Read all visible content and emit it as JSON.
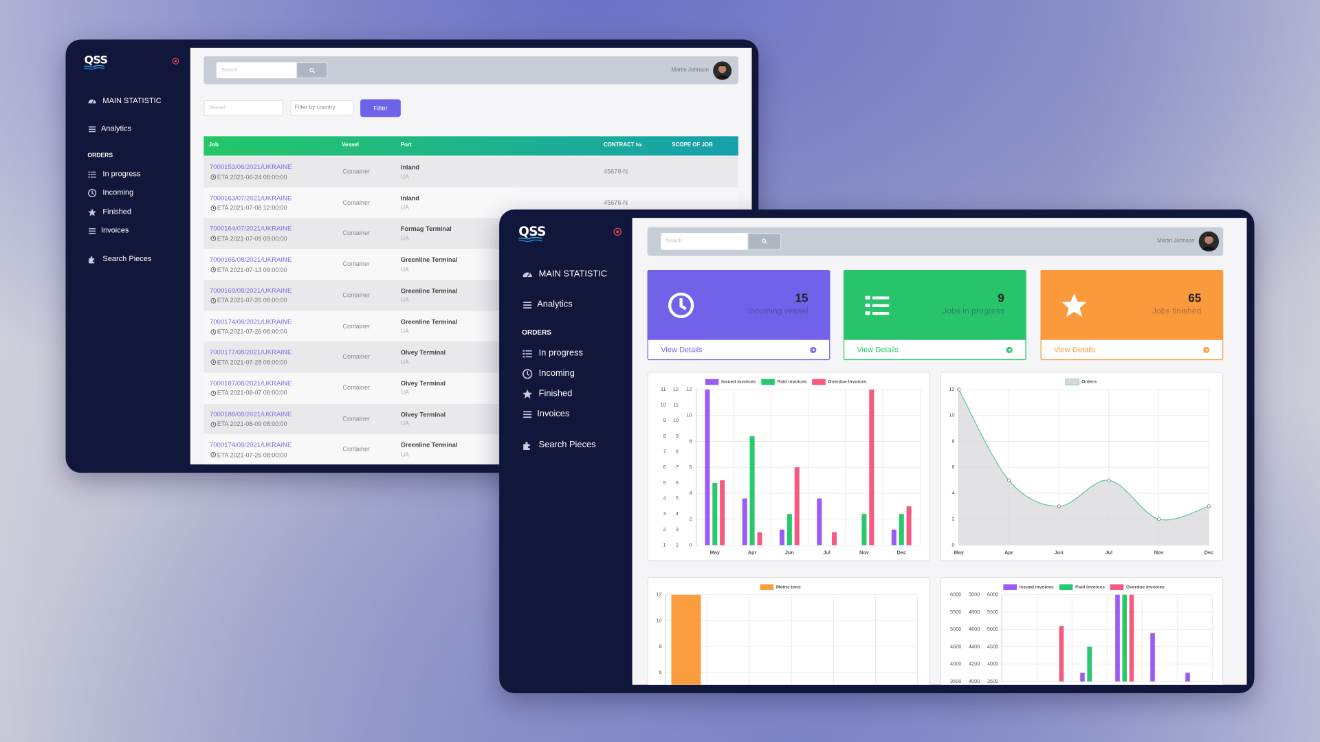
{
  "logo": "QSS",
  "sidebar": [
    "MAIN STATISTIC",
    "Analytics",
    "ORDERS",
    "In progress",
    "Incoming",
    "Finished",
    "Invoices",
    "Search Pieces"
  ],
  "topbar": {
    "search": "Search",
    "user": "Martin Johnson"
  },
  "filters": {
    "vessel": "Vessel",
    "country": "Filter by country",
    "button": "Filter"
  },
  "table": {
    "headers": [
      "Job",
      "Vessel",
      "Port",
      "CONTRACT №",
      "SCOPE OF JOB"
    ],
    "rows": [
      {
        "job": "7000153/06/2021/UKRAINE",
        "eta": "ETA 2021-06-24 08:00:00",
        "vessel": "Container",
        "port": "Inland",
        "country": "UA",
        "contract": "45678-N"
      },
      {
        "job": "7000163/07/2021/UKRAINE",
        "eta": "ETA 2021-07-08 12:00:00",
        "vessel": "Container",
        "port": "Inland",
        "country": "UA",
        "contract": "45676-N"
      },
      {
        "job": "7000164/07/2021/UKRAINE",
        "eta": "ETA 2021-07-09 09:00:00",
        "vessel": "Container",
        "port": "Formag Terminal",
        "country": "UA"
      },
      {
        "job": "7000165/08/2021/UKRAINE",
        "eta": "ETA 2021-07-13 09:00:00",
        "vessel": "Container",
        "port": "Greenline Terminal",
        "country": "UA"
      },
      {
        "job": "7000169/08/2021/UKRAINE",
        "eta": "ETA 2021-07-26 08:00:00",
        "vessel": "Container",
        "port": "Greenline Terminal",
        "country": "UA"
      },
      {
        "job": "7000174/08/2021/UKRAINE",
        "eta": "ETA 2021-07-26 08:00:00",
        "vessel": "Container",
        "port": "Greenline Terminal",
        "country": "UA"
      },
      {
        "job": "7000177/08/2021/UKRAINE",
        "eta": "ETA 2021-07-28 08:00:00",
        "vessel": "Container",
        "port": "Olvey Terminal",
        "country": "UA"
      },
      {
        "job": "7000187/08/2021/UKRAINE",
        "eta": "ETA 2021-08-07 08:00:00",
        "vessel": "Container",
        "port": "Olvey Terminal",
        "country": "UA"
      },
      {
        "job": "7000188/08/2021/UKRAINE",
        "eta": "ETA 2021-08-09 08:00:00",
        "vessel": "Container",
        "port": "Olvey Terminal",
        "country": "UA"
      },
      {
        "job": "7000174/08/2021/UKRAINE",
        "eta": "ETA 2021-07-26 08:00:00",
        "vessel": "Container",
        "port": "Greenline Terminal",
        "country": "UA"
      }
    ]
  },
  "cards": [
    {
      "value": 15,
      "label": "Incoming vessel",
      "link": "View Details",
      "color": "#7262ea"
    },
    {
      "value": 9,
      "label": "Jobs in progress",
      "link": "View Details",
      "color": "#27c46b"
    },
    {
      "value": 65,
      "label": "Jobs finished",
      "link": "View Details",
      "color": "#fb9a3c"
    }
  ],
  "charts": [
    {
      "type": "bar",
      "categories": [
        "May",
        "Apr",
        "Jun",
        "Jul",
        "Nov",
        "Dec"
      ],
      "series": [
        {
          "name": "Issued invoices",
          "color": "#9b5cf6",
          "axis": "y3",
          "values": [
            11,
            4,
            2,
            4,
            null,
            2
          ]
        },
        {
          "name": "Paid invoices",
          "color": "#27c96b",
          "axis": "y2",
          "values": [
            6,
            9,
            4,
            null,
            4,
            4
          ]
        },
        {
          "name": "Overdue invoices",
          "color": "#f55a80",
          "values": [
            5,
            1,
            6,
            1,
            12,
            3
          ]
        }
      ],
      "ylim": [
        0,
        12
      ],
      "yticks": [
        0,
        2,
        4,
        6,
        8,
        10,
        12
      ],
      "y2lim": [
        2,
        12
      ],
      "y2ticks": [
        2,
        3,
        4,
        5,
        6,
        7,
        8,
        9,
        10,
        11,
        12
      ],
      "y3lim": [
        1,
        11
      ],
      "y3ticks": [
        1,
        2,
        3,
        4,
        5,
        6,
        7,
        8,
        9,
        10,
        11
      ],
      "grid": true
    },
    {
      "type": "line",
      "categories": [
        "May",
        "Apr",
        "Jun",
        "Jul",
        "Nov",
        "Dec"
      ],
      "series": [
        {
          "name": "Orders",
          "color": "#5cc89b",
          "values": [
            12,
            5,
            3,
            5,
            2,
            3
          ]
        }
      ],
      "area_color": "#d8d8dc",
      "ylim": [
        0,
        12
      ],
      "yticks": [
        0,
        2,
        4,
        6,
        8,
        10,
        12
      ],
      "grid": true
    },
    {
      "type": "bar",
      "categories": [
        null,
        null,
        null,
        null,
        null,
        null
      ],
      "series": [
        {
          "name": "Metric tons",
          "color": "#fb9d3f",
          "values": [
            12,
            null,
            null,
            null,
            null,
            null
          ]
        }
      ],
      "ylim": [
        0,
        12
      ],
      "yticks": [
        6,
        8,
        10,
        12
      ],
      "grid": true
    },
    {
      "type": "bar",
      "categories": [
        null,
        null,
        null,
        null,
        null,
        null
      ],
      "series": [
        {
          "name": "Issued invoices",
          "color": "#9b5cf6",
          "values": [
            null,
            null,
            3750,
            6000,
            4900,
            3750
          ]
        },
        {
          "name": "Paid invoices",
          "color": "#27c96b",
          "axis": "y2",
          "values": [
            null,
            null,
            4400,
            5000,
            null,
            null
          ]
        },
        {
          "name": "Overdue invoices",
          "color": "#f55a80",
          "axis": "y3",
          "values": [
            null,
            5100,
            null,
            6000,
            null,
            null
          ]
        }
      ],
      "ylim": [
        3500,
        6000
      ],
      "yticks": [
        3500,
        4000,
        4500,
        5000,
        5500,
        6000
      ],
      "y2lim": [
        4000,
        5000
      ],
      "y2ticks": [
        4000,
        4200,
        4400,
        4600,
        4800,
        5000
      ],
      "y3lim": [
        3500,
        6000
      ],
      "y3ticks": [
        3500,
        4000,
        4500,
        5000,
        5500,
        6000
      ],
      "grid": true
    }
  ]
}
